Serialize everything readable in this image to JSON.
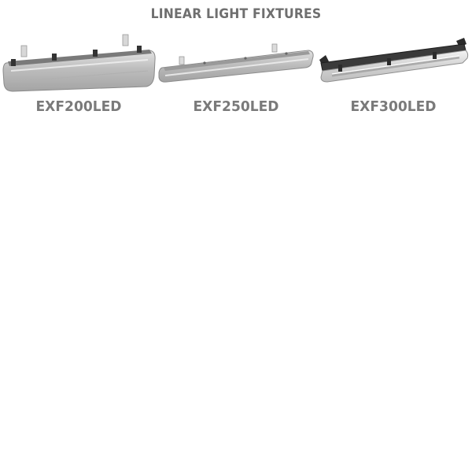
{
  "page": {
    "title": "LINEAR LIGHT FIXTURES"
  },
  "products": [
    {
      "label": "EXF200LED",
      "image_icon": "linear-fixture-gray-icon"
    },
    {
      "label": "EXF250LED",
      "image_icon": "linear-fixture-slim-gray-icon"
    },
    {
      "label": "EXF300LED",
      "image_icon": "linear-fixture-dark-frame-icon"
    }
  ]
}
